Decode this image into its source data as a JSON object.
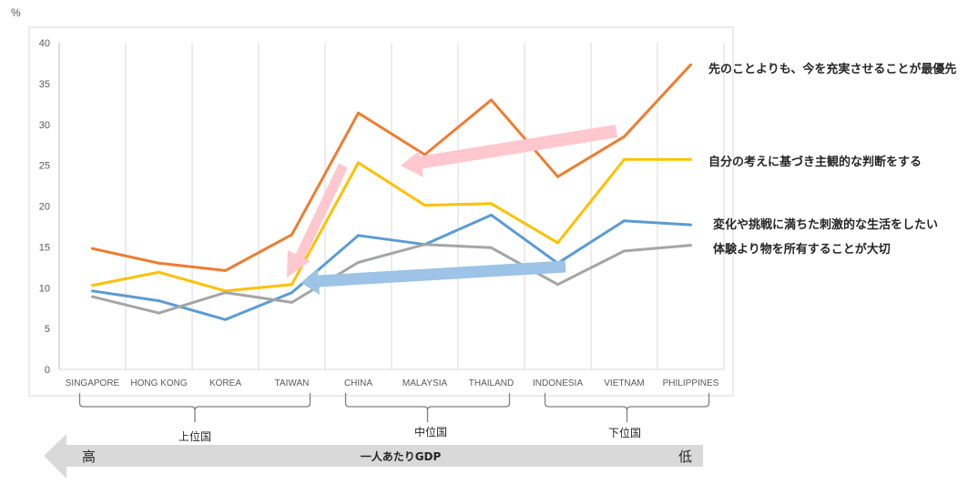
{
  "chart_data": {
    "type": "line",
    "ylabel": "%",
    "ylim": [
      0,
      40
    ],
    "yticks": [
      "0",
      "5",
      "10",
      "15",
      "20",
      "25",
      "30",
      "35",
      "40"
    ],
    "grid": "vertical",
    "categories": [
      "SINGAPORE",
      "HONG KONG",
      "KOREA",
      "TAIWAN",
      "CHINA",
      "MALAYSIA",
      "THAILAND",
      "INDONESIA",
      "VIETNAM",
      "PHILIPPINES"
    ],
    "series": [
      {
        "name": "先のことよりも、今を充実させることが最優先",
        "color": "#ED7D31",
        "values": [
          14.8,
          13.0,
          12.1,
          16.5,
          31.4,
          26.3,
          33.0,
          23.6,
          28.5,
          37.3
        ]
      },
      {
        "name": "自分の考えに基づき主観的な判断をする",
        "color": "#FFC000",
        "values": [
          10.3,
          11.9,
          9.6,
          10.4,
          25.3,
          20.1,
          20.3,
          15.5,
          25.7,
          25.7
        ]
      },
      {
        "name": "変化や挑戦に満ちた刺激的な生活をしたい",
        "color": "#5B9BD5",
        "values": [
          9.6,
          8.4,
          6.1,
          9.4,
          16.4,
          15.3,
          18.9,
          13.0,
          18.2,
          17.7
        ]
      },
      {
        "name": "体験より物を所有することが大切",
        "color": "#A5A5A5",
        "values": [
          8.9,
          6.9,
          9.4,
          8.2,
          13.1,
          15.3,
          14.9,
          10.4,
          14.5,
          15.2
        ]
      }
    ],
    "groups": [
      {
        "label": "上位国",
        "from": "SINGAPORE",
        "to": "TAIWAN"
      },
      {
        "label": "中位国",
        "from": "CHINA",
        "to": "THAILAND"
      },
      {
        "label": "下位国",
        "from": "INDONESIA",
        "to": "PHILIPPINES"
      }
    ],
    "gdp_axis": {
      "label": "一人あたりGDP",
      "high": "高",
      "low": "低"
    },
    "annotation_arrow_colors": {
      "pink": "#FFC7CE",
      "blue": "#9DC3E6"
    }
  }
}
